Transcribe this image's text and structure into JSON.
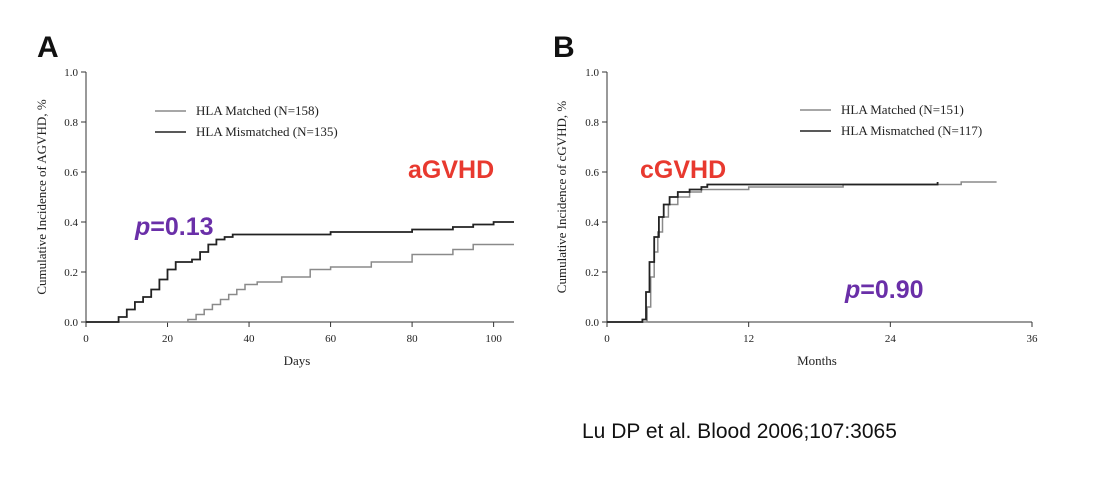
{
  "citation": "Lu DP et al. Blood 2006;107:3065",
  "chart_data": [
    {
      "type": "line",
      "panel_label": "A",
      "xlabel": "Days",
      "ylabel": "Cumulative Incidence of AGVHD, %",
      "xlim": [
        0,
        105
      ],
      "ylim": [
        0,
        1.0
      ],
      "xticks": [
        0,
        20,
        40,
        60,
        80,
        100
      ],
      "yticks": [
        0.0,
        0.2,
        0.4,
        0.6,
        0.8,
        1.0
      ],
      "ytick_labels": [
        "0.0",
        "0.2",
        "0.4",
        "0.6",
        "0.8",
        "1.0"
      ],
      "annotations": [
        {
          "text": "aGVHD",
          "color": "#e8392f"
        },
        {
          "text_italic": "p",
          "text": "=0.13",
          "color": "#6a2fa8"
        }
      ],
      "legend": "top-left",
      "series": [
        {
          "name": "HLA Matched (N=158)",
          "color": "#8a8a8a",
          "x": [
            0,
            18,
            25,
            27,
            29,
            31,
            33,
            35,
            37,
            39,
            42,
            48,
            55,
            60,
            70,
            80,
            90,
            95,
            100,
            105
          ],
          "y": [
            0,
            0,
            0.01,
            0.03,
            0.05,
            0.07,
            0.09,
            0.11,
            0.13,
            0.15,
            0.16,
            0.18,
            0.21,
            0.22,
            0.24,
            0.27,
            0.29,
            0.31,
            0.31,
            0.31
          ]
        },
        {
          "name": "HLA Mismatched (N=135)",
          "color": "#222222",
          "x": [
            0,
            6,
            8,
            10,
            12,
            14,
            16,
            18,
            20,
            22,
            26,
            28,
            30,
            32,
            34,
            36,
            40,
            60,
            80,
            90,
            95,
            100,
            105
          ],
          "y": [
            0,
            0,
            0.02,
            0.05,
            0.08,
            0.1,
            0.13,
            0.17,
            0.21,
            0.24,
            0.25,
            0.28,
            0.31,
            0.33,
            0.34,
            0.35,
            0.35,
            0.36,
            0.37,
            0.38,
            0.39,
            0.4,
            0.4
          ]
        }
      ]
    },
    {
      "type": "line",
      "panel_label": "B",
      "xlabel": "Months",
      "ylabel": "Cumulative Incidence of cGVHD, %",
      "xlim": [
        0,
        36
      ],
      "ylim": [
        0,
        1.0
      ],
      "xticks": [
        0,
        12,
        24,
        36
      ],
      "yticks": [
        0.0,
        0.2,
        0.4,
        0.6,
        0.8,
        1.0
      ],
      "ytick_labels": [
        "0.0",
        "0.2",
        "0.4",
        "0.6",
        "0.8",
        "1.0"
      ],
      "annotations": [
        {
          "text": "cGVHD",
          "color": "#e8392f"
        },
        {
          "text_italic": "p",
          "text": "=0.90",
          "color": "#6a2fa8"
        }
      ],
      "legend": "top-right",
      "series": [
        {
          "name": "HLA Matched (N=151)",
          "color": "#8a8a8a",
          "x": [
            0,
            3.2,
            3.4,
            3.7,
            4.0,
            4.3,
            4.7,
            5.2,
            6.0,
            7.0,
            8.0,
            9.0,
            12,
            20,
            24,
            30,
            33
          ],
          "y": [
            0,
            0,
            0.06,
            0.18,
            0.28,
            0.36,
            0.42,
            0.47,
            0.5,
            0.52,
            0.53,
            0.53,
            0.54,
            0.55,
            0.55,
            0.56,
            0.56
          ]
        },
        {
          "name": "HLA Mismatched (N=117)",
          "color": "#222222",
          "x": [
            0,
            2.0,
            3.0,
            3.3,
            3.6,
            4.0,
            4.4,
            4.8,
            5.3,
            6.0,
            7.0,
            8.0,
            8.5,
            12,
            24,
            28
          ],
          "y": [
            0,
            0,
            0.01,
            0.12,
            0.24,
            0.34,
            0.42,
            0.47,
            0.5,
            0.52,
            0.53,
            0.54,
            0.55,
            0.55,
            0.55,
            0.56
          ]
        }
      ]
    }
  ]
}
